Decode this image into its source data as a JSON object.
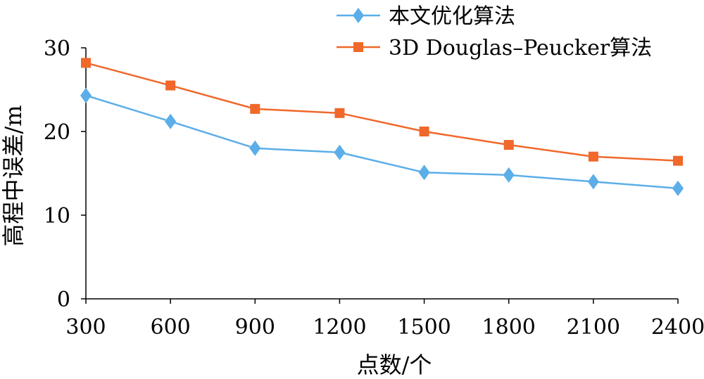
{
  "chart_data": {
    "type": "line",
    "categories": [
      "300",
      "600",
      "900",
      "1200",
      "1500",
      "1800",
      "2100",
      "2400"
    ],
    "series": [
      {
        "name": "本文优化算法",
        "values": [
          24.3,
          21.2,
          18.0,
          17.5,
          15.1,
          14.8,
          14.0,
          13.2
        ],
        "color": "#5BAEE8",
        "marker": "diamond"
      },
      {
        "name": "3D Douglas–Peucker算法",
        "values": [
          28.2,
          25.5,
          22.7,
          22.2,
          20.0,
          18.4,
          17.0,
          16.5
        ],
        "color": "#F0682A",
        "marker": "square"
      }
    ],
    "xlabel": "点数/个",
    "ylabel": "高程中误差/m",
    "ylim": [
      0,
      30
    ],
    "yticks": [
      "0",
      "10",
      "20",
      "30"
    ],
    "grid": false,
    "legend_position": "top-right"
  }
}
